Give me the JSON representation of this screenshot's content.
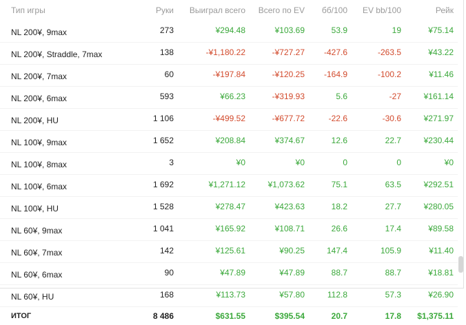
{
  "columns": [
    "Тип игры",
    "Руки",
    "Выиграл всего",
    "Всего по EV",
    "бб/100",
    "EV bb/100",
    "Рейк"
  ],
  "rows": [
    {
      "game": "NL 200¥, 9max",
      "hands": "273",
      "won": "¥294.48",
      "ev": "¥103.69",
      "bb100": "53.9",
      "evbb100": "19",
      "rake": "¥75.14",
      "s": [
        "pos",
        "pos",
        "pos",
        "pos",
        "pos"
      ]
    },
    {
      "game": "NL 200¥, Straddle, 7max",
      "hands": "138",
      "won": "-¥1,180.22",
      "ev": "-¥727.27",
      "bb100": "-427.6",
      "evbb100": "-263.5",
      "rake": "¥43.22",
      "s": [
        "neg",
        "neg",
        "neg",
        "neg",
        "pos"
      ]
    },
    {
      "game": "NL 200¥, 7max",
      "hands": "60",
      "won": "-¥197.84",
      "ev": "-¥120.25",
      "bb100": "-164.9",
      "evbb100": "-100.2",
      "rake": "¥11.46",
      "s": [
        "neg",
        "neg",
        "neg",
        "neg",
        "pos"
      ]
    },
    {
      "game": "NL 200¥, 6max",
      "hands": "593",
      "won": "¥66.23",
      "ev": "-¥319.93",
      "bb100": "5.6",
      "evbb100": "-27",
      "rake": "¥161.14",
      "s": [
        "pos",
        "neg",
        "pos",
        "neg",
        "pos"
      ]
    },
    {
      "game": "NL 200¥, HU",
      "hands": "1 106",
      "won": "-¥499.52",
      "ev": "-¥677.72",
      "bb100": "-22.6",
      "evbb100": "-30.6",
      "rake": "¥271.97",
      "s": [
        "neg",
        "neg",
        "neg",
        "neg",
        "pos"
      ]
    },
    {
      "game": "NL 100¥, 9max",
      "hands": "1 652",
      "won": "¥208.84",
      "ev": "¥374.67",
      "bb100": "12.6",
      "evbb100": "22.7",
      "rake": "¥230.44",
      "s": [
        "pos",
        "pos",
        "pos",
        "pos",
        "pos"
      ]
    },
    {
      "game": "NL 100¥, 8max",
      "hands": "3",
      "won": "¥0",
      "ev": "¥0",
      "bb100": "0",
      "evbb100": "0",
      "rake": "¥0",
      "s": [
        "pos",
        "pos",
        "pos",
        "pos",
        "pos"
      ]
    },
    {
      "game": "NL 100¥, 6max",
      "hands": "1 692",
      "won": "¥1,271.12",
      "ev": "¥1,073.62",
      "bb100": "75.1",
      "evbb100": "63.5",
      "rake": "¥292.51",
      "s": [
        "pos",
        "pos",
        "pos",
        "pos",
        "pos"
      ]
    },
    {
      "game": "NL 100¥, HU",
      "hands": "1 528",
      "won": "¥278.47",
      "ev": "¥423.63",
      "bb100": "18.2",
      "evbb100": "27.7",
      "rake": "¥280.05",
      "s": [
        "pos",
        "pos",
        "pos",
        "pos",
        "pos"
      ]
    },
    {
      "game": "NL 60¥, 9max",
      "hands": "1 041",
      "won": "¥165.92",
      "ev": "¥108.71",
      "bb100": "26.6",
      "evbb100": "17.4",
      "rake": "¥89.58",
      "s": [
        "pos",
        "pos",
        "pos",
        "pos",
        "pos"
      ]
    },
    {
      "game": "NL 60¥, 7max",
      "hands": "142",
      "won": "¥125.61",
      "ev": "¥90.25",
      "bb100": "147.4",
      "evbb100": "105.9",
      "rake": "¥11.40",
      "s": [
        "pos",
        "pos",
        "pos",
        "pos",
        "pos"
      ]
    },
    {
      "game": "NL 60¥, 6max",
      "hands": "90",
      "won": "¥47.89",
      "ev": "¥47.89",
      "bb100": "88.7",
      "evbb100": "88.7",
      "rake": "¥18.81",
      "s": [
        "pos",
        "pos",
        "pos",
        "pos",
        "pos"
      ]
    },
    {
      "game": "NL 60¥, HU",
      "hands": "168",
      "won": "¥113.73",
      "ev": "¥57.80",
      "bb100": "112.8",
      "evbb100": "57.3",
      "rake": "¥26.90",
      "s": [
        "pos",
        "pos",
        "pos",
        "pos",
        "pos"
      ]
    }
  ],
  "total": {
    "label": "ИТОГ",
    "hands": "8 486",
    "won": "$631.55",
    "ev": "$395.54",
    "bb100": "20.7",
    "evbb100": "17.8",
    "rake": "$1,375.11"
  },
  "colors": {
    "positive": "#3aa83a",
    "negative": "#d24a2c",
    "header": "#9a9a9a"
  }
}
